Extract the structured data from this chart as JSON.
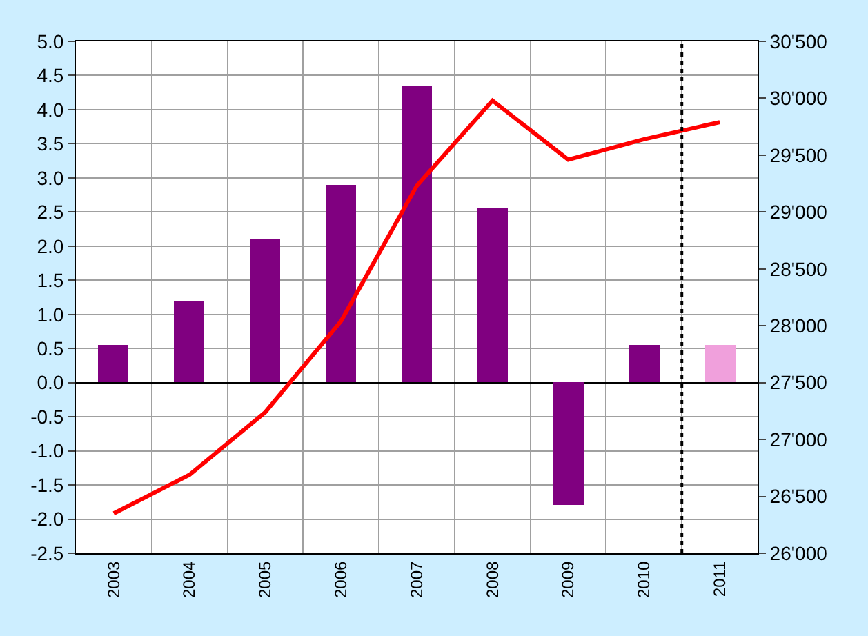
{
  "chart_data": {
    "type": "bar",
    "x": [
      2003,
      2004,
      2005,
      2006,
      2007,
      2008,
      2009,
      2010,
      2011
    ],
    "values": [
      0.55,
      1.2,
      2.1,
      2.9,
      4.35,
      2.55,
      -1.8,
      0.56,
      0.55
    ],
    "colors": [
      "#800080",
      "#800080",
      "#800080",
      "#800080",
      "#800080",
      "#800080",
      "#800080",
      "#800080",
      "#f0a0dc"
    ],
    "series": [
      {
        "type": "line",
        "axis": "y2",
        "color": "#ff0000",
        "values": [
          26350,
          26690,
          27240,
          28040,
          29230,
          29980,
          29460,
          29640,
          29790
        ]
      }
    ],
    "xlim": [
      2002.5,
      2011.5
    ],
    "xticks": [
      2003,
      2004,
      2005,
      2006,
      2007,
      2008,
      2009,
      2010,
      2011
    ],
    "ylim": [
      -2.5,
      5
    ],
    "yticks": [
      {
        "value": -2.5,
        "label": "-2.5"
      },
      {
        "value": -2,
        "label": "-2.0"
      },
      {
        "value": -1.5,
        "label": "-1.5"
      },
      {
        "value": -1,
        "label": "-1.0"
      },
      {
        "value": -0.5,
        "label": "-0.5"
      },
      {
        "value": 0,
        "label": "0.0"
      },
      {
        "value": 0.5,
        "label": "0.5"
      },
      {
        "value": 1,
        "label": "1.0"
      },
      {
        "value": 1.5,
        "label": "1.5"
      },
      {
        "value": 2,
        "label": "2.0"
      },
      {
        "value": 2.5,
        "label": "2.5"
      },
      {
        "value": 3,
        "label": "3.0"
      },
      {
        "value": 3.5,
        "label": "3.5"
      },
      {
        "value": 4,
        "label": "4.0"
      },
      {
        "value": 4.5,
        "label": "4.5"
      },
      {
        "value": 5,
        "label": "5.0"
      }
    ],
    "y2lim": [
      26000,
      30500
    ],
    "y2ticks": [
      {
        "value": 26000,
        "label": "26'000"
      },
      {
        "value": 26500,
        "label": "26'500"
      },
      {
        "value": 27000,
        "label": "27'000"
      },
      {
        "value": 27500,
        "label": "27'500"
      },
      {
        "value": 28000,
        "label": "28'000"
      },
      {
        "value": 28500,
        "label": "28'500"
      },
      {
        "value": 29000,
        "label": "29'000"
      },
      {
        "value": 29500,
        "label": "29'500"
      },
      {
        "value": 30000,
        "label": "30'000"
      },
      {
        "value": 30500,
        "label": "30'500"
      }
    ],
    "ref_lines": [
      {
        "axis": "x",
        "value": 2010.5,
        "color": "#000000",
        "line_style": "dotted"
      }
    ],
    "grid": true
  }
}
